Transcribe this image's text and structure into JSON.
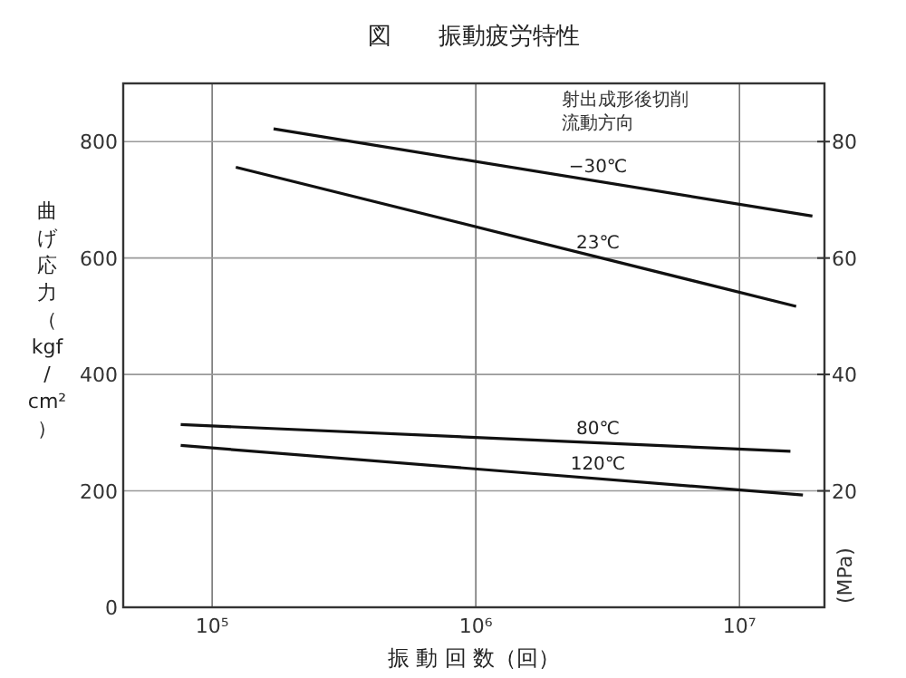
{
  "chart_data": {
    "type": "line",
    "title": "図　　振動疲労特性",
    "xlabel": "振 動 回 数（回）",
    "ylabel": "曲げ応力（kgf/cm²）",
    "y2label": "(MPa)",
    "log": "x",
    "grid": true,
    "marker": "none",
    "line_style": "solid",
    "xlim": [
      46000,
      21000000
    ],
    "xticks": [
      {
        "value": 100000,
        "label": "10⁵"
      },
      {
        "value": 1000000,
        "label": "10⁶"
      },
      {
        "value": 10000000,
        "label": "10⁷"
      }
    ],
    "ylim": [
      0,
      900
    ],
    "yticks": [
      0,
      200,
      400,
      600,
      800
    ],
    "y2lim": [
      0,
      90
    ],
    "y2ticks": [
      20,
      40,
      60,
      80
    ],
    "annotations": [
      "射出成形後切削",
      "流動方向"
    ],
    "series": [
      {
        "name": "−30℃",
        "color": "#111111",
        "x": [
          171000,
          18900000
        ],
        "values": [
          822,
          672
        ]
      },
      {
        "name": "23℃",
        "color": "#111111",
        "x": [
          123000,
          16400000
        ],
        "values": [
          756,
          517
        ]
      },
      {
        "name": "80℃",
        "color": "#111111",
        "x": [
          76000,
          15600000
        ],
        "values": [
          314,
          268
        ]
      },
      {
        "name": "120℃",
        "color": "#111111",
        "x": [
          76000,
          17400000
        ],
        "values": [
          278,
          193
        ]
      }
    ]
  }
}
